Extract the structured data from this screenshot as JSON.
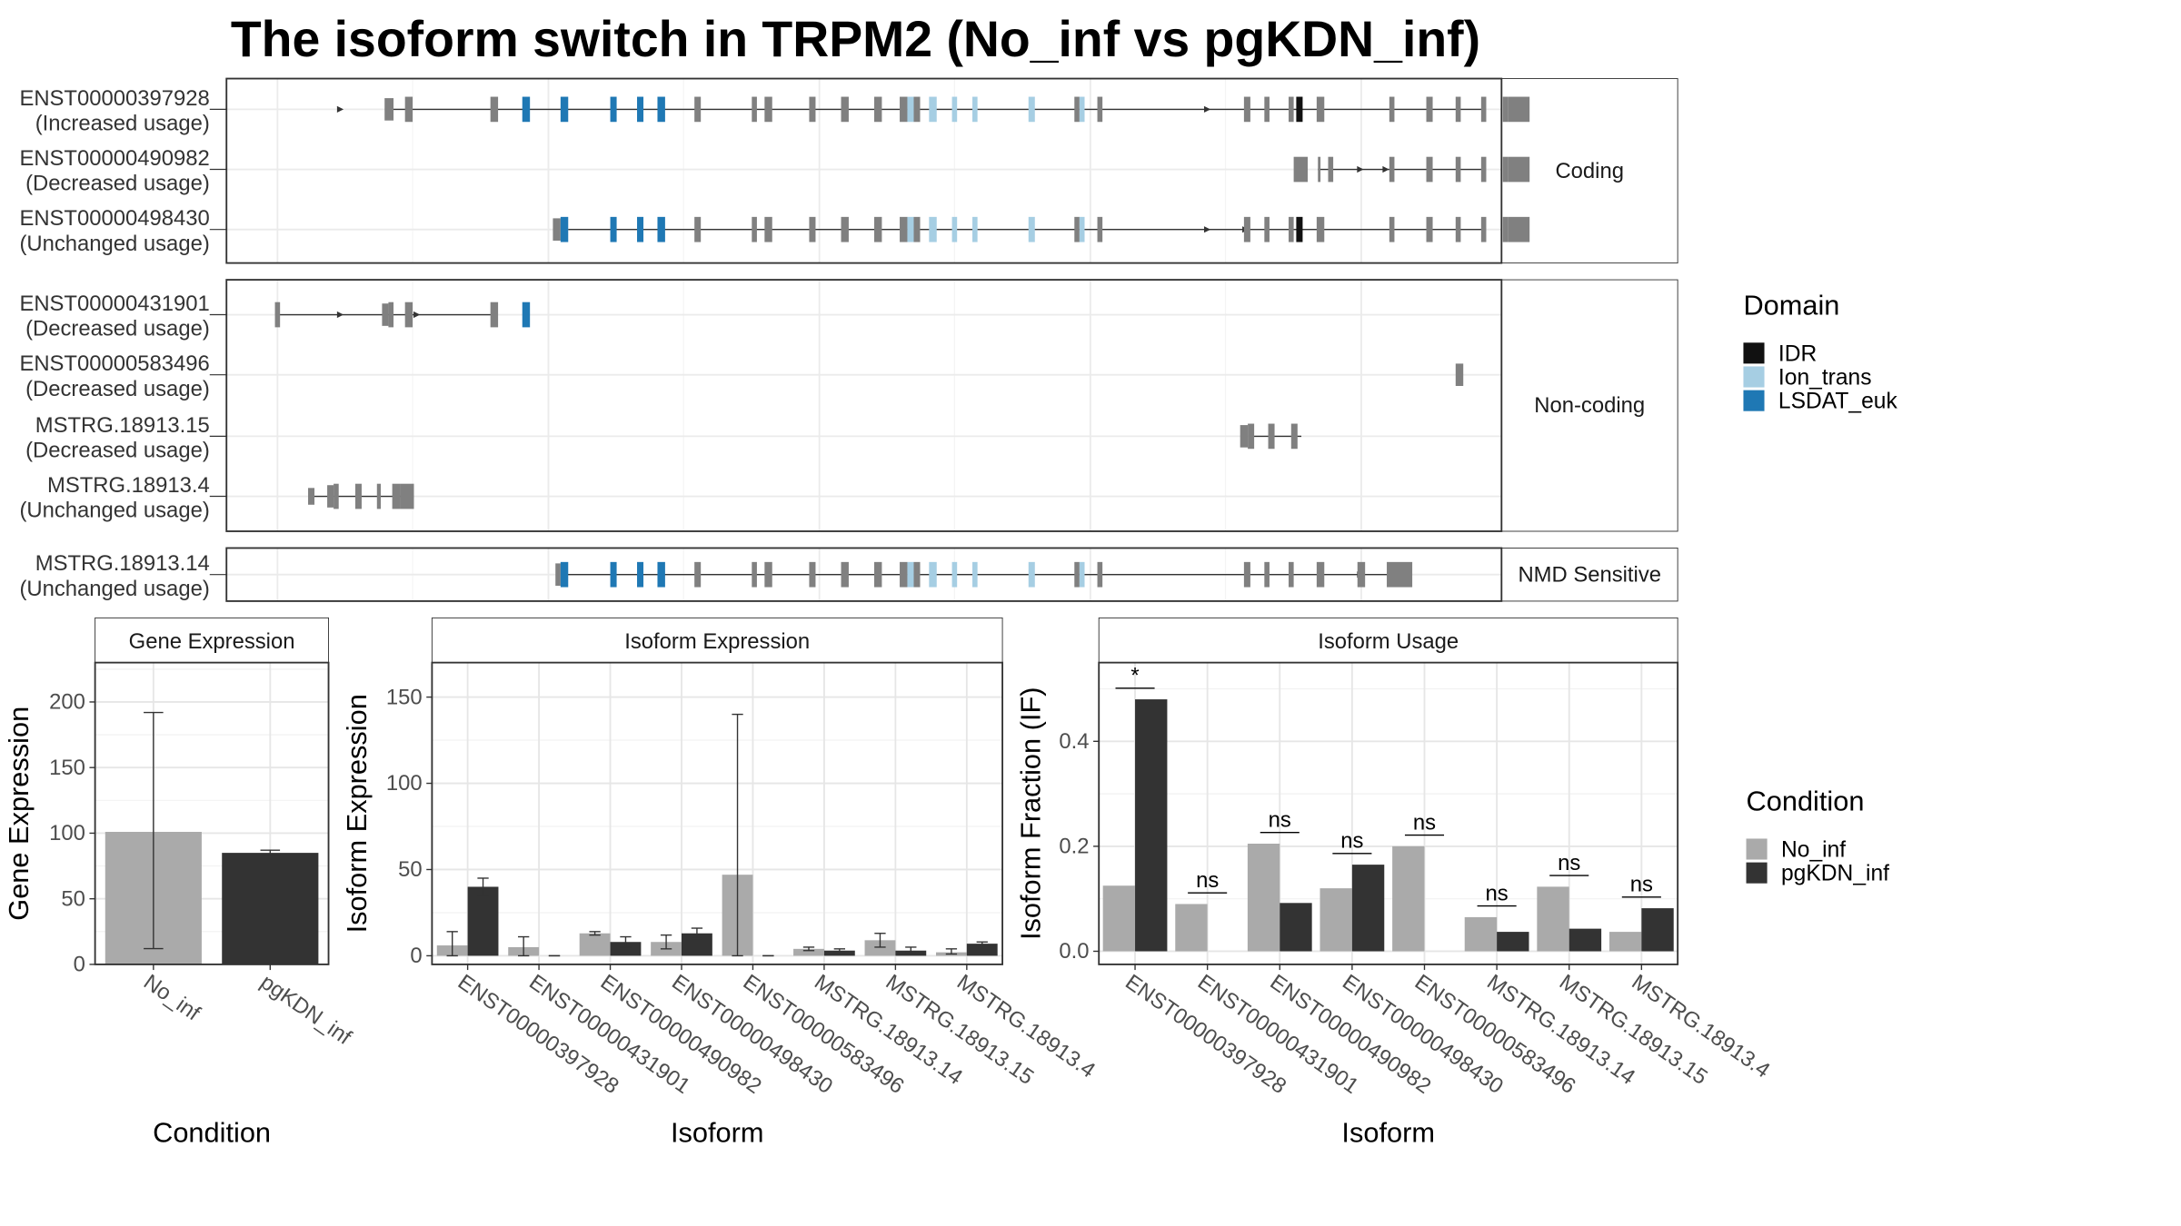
{
  "title": "The isoform switch in TRPM2 (No_inf vs pgKDN_inf)",
  "colors": {
    "idr": "#111111",
    "ion_trans": "#a6cee3",
    "lsdat_euk": "#1f78b4",
    "exon": "#808080",
    "no_inf": "#aaaaaa",
    "pgkdn_inf": "#333333"
  },
  "domain_legend": {
    "title": "Domain",
    "items": [
      {
        "label": "IDR",
        "color_key": "idr"
      },
      {
        "label": "Ion_trans",
        "color_key": "ion_trans"
      },
      {
        "label": "LSDAT_euk",
        "color_key": "lsdat_euk"
      }
    ]
  },
  "condition_legend": {
    "title": "Condition",
    "items": [
      {
        "label": "No_inf",
        "color_key": "no_inf"
      },
      {
        "label": "pgKDN_inf",
        "color_key": "pgkdn_inf"
      }
    ]
  },
  "structure_panels": [
    {
      "strip": "Coding",
      "tracks": [
        {
          "id": "ENST00000397928",
          "usage": "(Increased usage)",
          "intron": [
            125,
            985
          ],
          "arrows": [
            90,
            770
          ],
          "exons": [
            [
              124,
              131,
              "e",
              "m"
            ],
            [
              140,
              146,
              "e",
              "n"
            ],
            [
              207,
              213,
              "e",
              "n"
            ],
            [
              232,
              238,
              "l",
              "n"
            ],
            [
              262,
              268,
              "l",
              "n"
            ],
            [
              301,
              306,
              "l",
              "n"
            ],
            [
              322,
              327,
              "l",
              "n"
            ],
            [
              338,
              344,
              "l",
              "n"
            ],
            [
              367,
              372,
              "e",
              "n"
            ],
            [
              412,
              416,
              "e",
              "n"
            ],
            [
              422,
              428,
              "e",
              "n"
            ],
            [
              457,
              462,
              "e",
              "n"
            ],
            [
              482,
              488,
              "e",
              "n"
            ],
            [
              508,
              514,
              "e",
              "n"
            ],
            [
              528,
              534,
              "e",
              "n"
            ],
            [
              534,
              539,
              "i",
              "n"
            ],
            [
              539,
              544,
              "e",
              "n"
            ],
            [
              551,
              557,
              "i",
              "n"
            ],
            [
              569,
              573,
              "i",
              "n"
            ],
            [
              585,
              589,
              "i",
              "n"
            ],
            [
              629,
              634,
              "i",
              "n"
            ],
            [
              665,
              669,
              "e",
              "n"
            ],
            [
              669,
              673,
              "i",
              "n"
            ],
            [
              683,
              687,
              "e",
              "n"
            ],
            [
              798,
              803,
              "e",
              "n"
            ],
            [
              814,
              818,
              "e",
              "n"
            ],
            [
              833,
              837,
              "e",
              "n"
            ],
            [
              839,
              844,
              "d",
              "n"
            ],
            [
              855,
              861,
              "e",
              "n"
            ],
            [
              912,
              916,
              "e",
              "n"
            ],
            [
              941,
              946,
              "e",
              "n"
            ],
            [
              964,
              968,
              "e",
              "n"
            ],
            [
              984,
              988,
              "e",
              "n"
            ],
            [
              1001,
              1005,
              "e",
              "n"
            ],
            [
              1005,
              1022,
              "e",
              "l"
            ]
          ]
        },
        {
          "id": "ENST00000490982",
          "usage": "(Decreased usage)",
          "intron": [
            856,
            985
          ],
          "arrows": [
            890,
            910
          ],
          "exons": [
            [
              837,
              848,
              "e",
              "l"
            ],
            [
              856,
              858,
              "e",
              "n"
            ],
            [
              864,
              868,
              "e",
              "n"
            ],
            [
              912,
              916,
              "e",
              "n"
            ],
            [
              941,
              946,
              "e",
              "n"
            ],
            [
              964,
              968,
              "e",
              "n"
            ],
            [
              984,
              988,
              "e",
              "n"
            ],
            [
              1001,
              1005,
              "e",
              "n"
            ],
            [
              1005,
              1022,
              "e",
              "l"
            ]
          ]
        },
        {
          "id": "ENST00000498430",
          "usage": "(Unchanged usage)",
          "intron": [
            268,
            985
          ],
          "arrows": [
            770,
            800
          ],
          "exons": [
            [
              256,
              262,
              "e",
              "m"
            ],
            [
              262,
              268,
              "l",
              "n"
            ],
            [
              301,
              306,
              "l",
              "n"
            ],
            [
              322,
              327,
              "l",
              "n"
            ],
            [
              338,
              344,
              "l",
              "n"
            ],
            [
              367,
              372,
              "e",
              "n"
            ],
            [
              412,
              416,
              "e",
              "n"
            ],
            [
              422,
              428,
              "e",
              "n"
            ],
            [
              457,
              462,
              "e",
              "n"
            ],
            [
              482,
              488,
              "e",
              "n"
            ],
            [
              508,
              514,
              "e",
              "n"
            ],
            [
              528,
              534,
              "e",
              "n"
            ],
            [
              534,
              539,
              "i",
              "n"
            ],
            [
              539,
              544,
              "e",
              "n"
            ],
            [
              551,
              557,
              "i",
              "n"
            ],
            [
              569,
              573,
              "i",
              "n"
            ],
            [
              585,
              589,
              "i",
              "n"
            ],
            [
              629,
              634,
              "i",
              "n"
            ],
            [
              665,
              669,
              "e",
              "n"
            ],
            [
              669,
              673,
              "i",
              "n"
            ],
            [
              683,
              687,
              "e",
              "n"
            ],
            [
              798,
              803,
              "e",
              "n"
            ],
            [
              814,
              818,
              "e",
              "n"
            ],
            [
              833,
              837,
              "e",
              "n"
            ],
            [
              839,
              844,
              "d",
              "n"
            ],
            [
              855,
              861,
              "e",
              "n"
            ],
            [
              912,
              916,
              "e",
              "n"
            ],
            [
              941,
              946,
              "e",
              "n"
            ],
            [
              964,
              968,
              "e",
              "n"
            ],
            [
              984,
              988,
              "e",
              "n"
            ],
            [
              1001,
              1005,
              "e",
              "n"
            ],
            [
              1005,
              1022,
              "e",
              "l"
            ]
          ]
        }
      ]
    },
    {
      "strip": "Non-coding",
      "tracks": [
        {
          "id": "ENST00000431901",
          "usage": "(Decreased usage)",
          "intron": [
            40,
            210
          ],
          "arrows": [
            90,
            150
          ],
          "exons": [
            [
              38,
              42,
              "e",
              "n"
            ],
            [
              122,
              127,
              "e",
              "m"
            ],
            [
              127,
              131,
              "e",
              "n"
            ],
            [
              140,
              146,
              "e",
              "n"
            ],
            [
              207,
              213,
              "e",
              "n"
            ],
            [
              232,
              238,
              "l",
              "n"
            ]
          ]
        },
        {
          "id": "ENST00000583496",
          "usage": "(Decreased usage)",
          "intron": null,
          "arrows": [],
          "exons": [
            [
              964,
              970,
              "e",
              "m"
            ]
          ]
        },
        {
          "id": "MSTRG.18913.15",
          "usage": "(Decreased usage)",
          "intron": [
            803,
            843
          ],
          "arrows": [],
          "exons": [
            [
              795,
              801,
              "e",
              "m"
            ],
            [
              801,
              806,
              "e",
              "n"
            ],
            [
              817,
              822,
              "e",
              "n"
            ],
            [
              835,
              840,
              "e",
              "n"
            ]
          ]
        },
        {
          "id": "MSTRG.18913.4",
          "usage": "(Unchanged usage)",
          "intron": [
            65,
            147
          ],
          "arrows": [],
          "exons": [
            [
              64,
              69,
              "e",
              "s"
            ],
            [
              79,
              84,
              "e",
              "m"
            ],
            [
              84,
              88,
              "e",
              "n"
            ],
            [
              101,
              106,
              "e",
              "n"
            ],
            [
              118,
              121,
              "e",
              "n"
            ],
            [
              130,
              136,
              "e",
              "n"
            ],
            [
              136,
              147,
              "e",
              "l"
            ]
          ]
        }
      ]
    },
    {
      "strip": "NMD Sensitive",
      "tracks": [
        {
          "id": "MSTRG.18913.14",
          "usage": "(Unchanged usage)",
          "intron": [
            264,
            920
          ],
          "arrows": [
            555,
            890
          ],
          "exons": [
            [
              258,
              262,
              "e",
              "m"
            ],
            [
              262,
              268,
              "l",
              "n"
            ],
            [
              301,
              306,
              "l",
              "n"
            ],
            [
              322,
              327,
              "l",
              "n"
            ],
            [
              338,
              344,
              "l",
              "n"
            ],
            [
              367,
              372,
              "e",
              "n"
            ],
            [
              412,
              416,
              "e",
              "n"
            ],
            [
              422,
              428,
              "e",
              "n"
            ],
            [
              457,
              462,
              "e",
              "n"
            ],
            [
              482,
              488,
              "e",
              "n"
            ],
            [
              508,
              514,
              "e",
              "n"
            ],
            [
              528,
              534,
              "e",
              "n"
            ],
            [
              534,
              539,
              "i",
              "n"
            ],
            [
              539,
              544,
              "e",
              "n"
            ],
            [
              551,
              557,
              "i",
              "n"
            ],
            [
              569,
              573,
              "i",
              "n"
            ],
            [
              585,
              589,
              "i",
              "n"
            ],
            [
              629,
              634,
              "i",
              "n"
            ],
            [
              665,
              669,
              "e",
              "n"
            ],
            [
              669,
              673,
              "i",
              "n"
            ],
            [
              683,
              687,
              "e",
              "n"
            ],
            [
              798,
              803,
              "e",
              "n"
            ],
            [
              814,
              818,
              "e",
              "n"
            ],
            [
              833,
              837,
              "e",
              "n"
            ],
            [
              855,
              861,
              "e",
              "n"
            ],
            [
              887,
              893,
              "e",
              "n"
            ],
            [
              910,
              930,
              "e",
              "l"
            ]
          ]
        }
      ]
    }
  ],
  "chart_data": [
    {
      "type": "bar",
      "panel_title": "Gene Expression",
      "xlabel": "Condition",
      "ylabel": "Gene Expression",
      "ylim": [
        0,
        230
      ],
      "yticks": [
        0,
        50,
        100,
        150,
        200
      ],
      "categories": [
        "No_inf",
        "pgKDN_inf"
      ],
      "values": [
        101,
        85
      ],
      "error_low": [
        12,
        83
      ],
      "error_high": [
        192,
        87
      ],
      "bar_colors": [
        "no_inf",
        "pgkdn_inf"
      ]
    },
    {
      "type": "bar",
      "panel_title": "Isoform Expression",
      "xlabel": "Isoform",
      "ylabel": "Isoform Expression",
      "ylim": [
        -5,
        170
      ],
      "yticks": [
        0,
        50,
        100,
        150
      ],
      "categories": [
        "ENST00000397928",
        "ENST00000431901",
        "ENST00000490982",
        "ENST00000498430",
        "ENST00000583496",
        "MSTRG.18913.14",
        "MSTRG.18913.15",
        "MSTRG.18913.4"
      ],
      "series": [
        {
          "name": "No_inf",
          "color_key": "no_inf",
          "values": [
            6,
            5,
            13,
            8,
            47,
            4,
            9,
            2
          ],
          "error_low": [
            0,
            0,
            12,
            4,
            0,
            3,
            5,
            1
          ],
          "error_high": [
            14,
            11,
            14,
            12,
            140,
            5,
            13,
            4
          ]
        },
        {
          "name": "pgKDN_inf",
          "color_key": "pgkdn_inf",
          "values": [
            40,
            0,
            8,
            13,
            0,
            3,
            3,
            7
          ],
          "error_low": [
            35,
            0,
            5,
            10,
            0,
            2,
            2,
            6
          ],
          "error_high": [
            45,
            0,
            11,
            16,
            0,
            4,
            5,
            8
          ]
        }
      ]
    },
    {
      "type": "bar",
      "panel_title": "Isoform Usage",
      "xlabel": "Isoform",
      "ylabel": "Isoform Fraction (IF)",
      "ylim": [
        -0.025,
        0.55
      ],
      "yticks": [
        0.0,
        0.2,
        0.4
      ],
      "ytick_labels": [
        "0.0",
        "0.2",
        "0.4"
      ],
      "categories": [
        "ENST00000397928",
        "ENST00000431901",
        "ENST00000490982",
        "ENST00000498430",
        "ENST00000583496",
        "MSTRG.18913.14",
        "MSTRG.18913.15",
        "MSTRG.18913.4"
      ],
      "series": [
        {
          "name": "No_inf",
          "color_key": "no_inf",
          "values": [
            0.125,
            0.09,
            0.205,
            0.12,
            0.2,
            0.065,
            0.123,
            0.037
          ]
        },
        {
          "name": "pgKDN_inf",
          "color_key": "pgkdn_inf",
          "values": [
            0.48,
            0.0,
            0.092,
            0.165,
            0.0,
            0.037,
            0.043,
            0.082
          ]
        }
      ],
      "significance": [
        "*",
        "ns",
        "ns",
        "ns",
        "ns",
        "ns",
        "ns",
        "ns"
      ]
    }
  ]
}
